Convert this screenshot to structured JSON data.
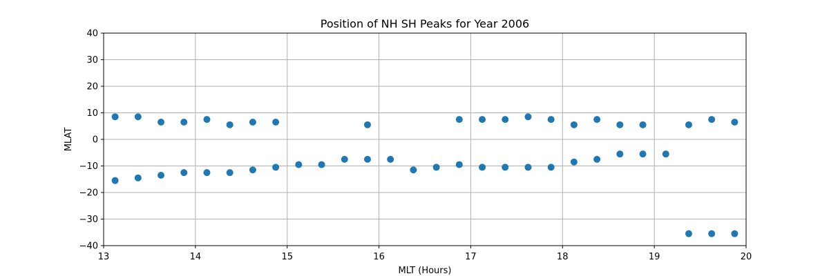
{
  "chart_data": {
    "type": "scatter",
    "title": "Position of NH SH Peaks for Year 2006",
    "xlabel": "MLT (Hours)",
    "ylabel": "MLAT",
    "xlim": [
      13,
      20
    ],
    "ylim": [
      -40,
      40
    ],
    "xticks": [
      13,
      14,
      15,
      16,
      17,
      18,
      19,
      20
    ],
    "yticks": [
      -40,
      -30,
      -20,
      -10,
      0,
      10,
      20,
      30,
      40
    ],
    "grid": true,
    "marker_color": "#1f77b4",
    "series": [
      {
        "points": [
          [
            13.125,
            8.5
          ],
          [
            13.375,
            8.5
          ],
          [
            13.625,
            6.5
          ],
          [
            13.875,
            6.5
          ],
          [
            14.125,
            7.5
          ],
          [
            14.375,
            5.5
          ],
          [
            14.625,
            6.5
          ],
          [
            14.875,
            6.5
          ],
          [
            15.875,
            5.5
          ],
          [
            16.875,
            7.5
          ],
          [
            17.125,
            7.5
          ],
          [
            17.375,
            7.5
          ],
          [
            17.625,
            8.5
          ],
          [
            17.875,
            7.5
          ],
          [
            18.125,
            5.5
          ],
          [
            18.375,
            7.5
          ],
          [
            18.625,
            5.5
          ],
          [
            18.875,
            5.5
          ],
          [
            19.375,
            5.5
          ],
          [
            19.625,
            7.5
          ],
          [
            19.875,
            6.5
          ],
          [
            13.125,
            -15.5
          ],
          [
            13.375,
            -14.5
          ],
          [
            13.625,
            -13.5
          ],
          [
            13.875,
            -12.5
          ],
          [
            14.125,
            -12.5
          ],
          [
            14.375,
            -12.5
          ],
          [
            14.625,
            -11.5
          ],
          [
            14.875,
            -10.5
          ],
          [
            15.125,
            -9.5
          ],
          [
            15.375,
            -9.5
          ],
          [
            15.625,
            -7.5
          ],
          [
            15.875,
            -7.5
          ],
          [
            16.125,
            -7.5
          ],
          [
            16.375,
            -11.5
          ],
          [
            16.625,
            -10.5
          ],
          [
            16.875,
            -9.5
          ],
          [
            17.125,
            -10.5
          ],
          [
            17.375,
            -10.5
          ],
          [
            17.625,
            -10.5
          ],
          [
            17.875,
            -10.5
          ],
          [
            18.125,
            -8.5
          ],
          [
            18.375,
            -7.5
          ],
          [
            18.625,
            -5.5
          ],
          [
            18.875,
            -5.5
          ],
          [
            19.125,
            -5.5
          ],
          [
            19.375,
            -35.5
          ],
          [
            19.625,
            -35.5
          ],
          [
            19.875,
            -35.5
          ]
        ]
      }
    ]
  }
}
